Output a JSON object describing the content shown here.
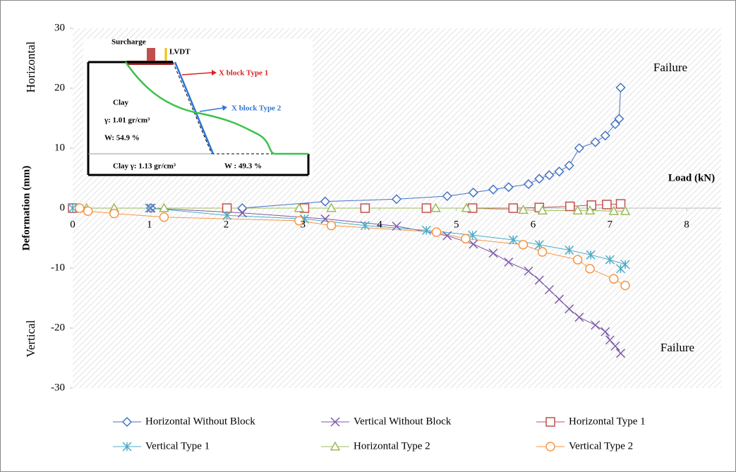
{
  "chart_data": {
    "type": "line",
    "x_label": "Load (kN)",
    "y_label": "Deformation (mm)",
    "annotations": [
      "Horizontal",
      "Vertical",
      "Failure",
      "Failure"
    ],
    "xlim": [
      0,
      8.45
    ],
    "xticks": [
      0,
      1,
      2,
      3,
      4,
      5,
      6,
      7,
      8
    ],
    "ylim": [
      -30,
      30
    ],
    "yticks": [
      -30,
      -20,
      -10,
      0,
      10,
      20,
      30
    ],
    "grid": false,
    "legend": "bottom",
    "series": [
      {
        "name": "Horizontal Without Block",
        "color": "#4472c4",
        "marker": "diamond",
        "x": [
          0,
          1.02,
          2.21,
          3.29,
          4.22,
          4.88,
          5.22,
          5.48,
          5.68,
          5.94,
          6.08,
          6.21,
          6.34,
          6.47,
          6.6,
          6.81,
          6.94,
          7.07,
          7.12,
          7.14
        ],
        "values": [
          0,
          0,
          0,
          1.1,
          1.5,
          2,
          2.6,
          3.1,
          3.5,
          4,
          4.9,
          5.5,
          6.1,
          7.1,
          10,
          11,
          12.1,
          14,
          14.9,
          20.1
        ]
      },
      {
        "name": "Vertical Without Block",
        "color": "#7e5ca8",
        "marker": "cross",
        "x": [
          0,
          1.02,
          2.21,
          3.29,
          4.22,
          4.88,
          5.22,
          5.48,
          5.68,
          5.94,
          6.08,
          6.21,
          6.34,
          6.47,
          6.6,
          6.81,
          6.94,
          7.0,
          7.07,
          7.14
        ],
        "values": [
          0,
          0,
          -0.8,
          -1.8,
          -3,
          -4.6,
          -6,
          -7.5,
          -9,
          -10.5,
          -12,
          -13.6,
          -15.2,
          -16.8,
          -18.2,
          -19.5,
          -20.6,
          -22,
          -23,
          -24.2
        ]
      },
      {
        "name": "Horizontal Type 1",
        "color": "#c0504d",
        "marker": "square",
        "x": [
          0,
          2.01,
          3.02,
          3.81,
          4.61,
          5.21,
          5.74,
          6.08,
          6.48,
          6.76,
          6.96,
          7.14
        ],
        "values": [
          0,
          0,
          0,
          0,
          0,
          0,
          0,
          0.1,
          0.3,
          0.5,
          0.6,
          0.7
        ]
      },
      {
        "name": "Vertical Type 1",
        "color": "#4bacc6",
        "marker": "asterisk",
        "x": [
          0,
          1.0,
          2.01,
          3.02,
          3.81,
          4.61,
          5.21,
          5.74,
          6.08,
          6.47,
          6.75,
          7.0,
          7.2,
          7.14
        ],
        "values": [
          0,
          0,
          -1.2,
          -1.8,
          -2.9,
          -3.7,
          -4.5,
          -5.3,
          -6.1,
          -7,
          -7.8,
          -8.6,
          -9.4,
          -10.1
        ]
      },
      {
        "name": "Horizontal Type 2",
        "color": "#9bbb59",
        "marker": "triangle",
        "x": [
          0.18,
          0.54,
          1.19,
          2.95,
          3.37,
          4.73,
          5.13,
          5.87,
          6.12,
          6.58,
          6.74,
          7.05,
          7.2
        ],
        "values": [
          0,
          0,
          0,
          0,
          0,
          0,
          0,
          -0.3,
          -0.4,
          -0.4,
          -0.4,
          -0.5,
          -0.5
        ]
      },
      {
        "name": "Vertical Type 2",
        "color": "#f79646",
        "marker": "circle",
        "x": [
          0.09,
          0.2,
          0.54,
          1.19,
          2.95,
          3.37,
          4.74,
          5.12,
          5.87,
          6.12,
          6.58,
          6.74,
          7.05,
          7.2
        ],
        "values": [
          0,
          -0.5,
          -0.9,
          -1.5,
          -2.1,
          -2.9,
          -4,
          -5.1,
          -6.1,
          -7.3,
          -8.6,
          -10.1,
          -11.8,
          -12.9
        ]
      }
    ],
    "inset_labels": {
      "surcharge": "Surcharge",
      "lvdt": "LVDT",
      "type1": "X block Type 1",
      "type2": "X block Type 2",
      "clay": "Clay",
      "gamma_top": "γ: 1.01 gr/cm³",
      "w_top": "W: 54.9 %",
      "clay_bottom": "Clay γ: 1.13 gr/cm³",
      "w_bottom": "W : 49.3 %"
    }
  }
}
